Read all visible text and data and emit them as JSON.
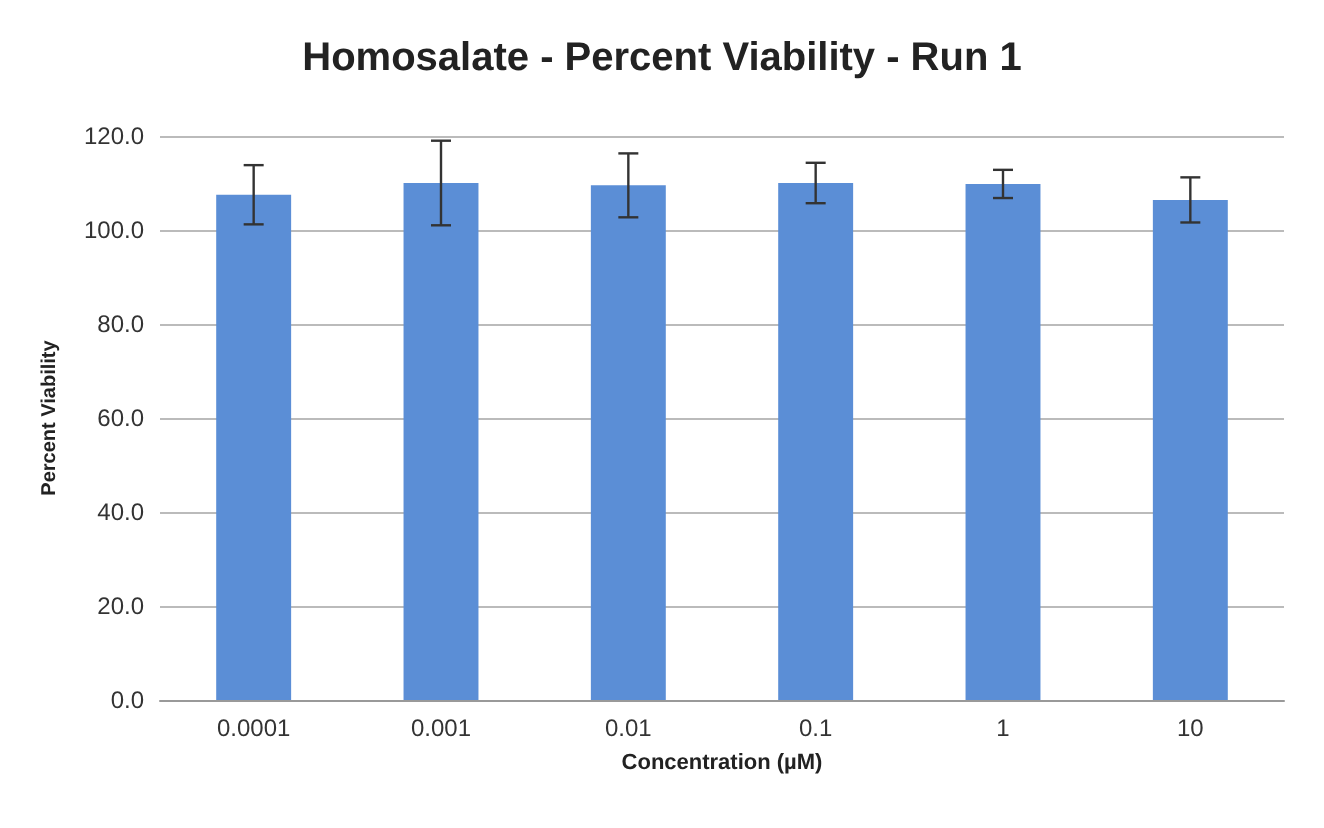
{
  "chart_data": {
    "type": "bar",
    "title": "Homosalate - Percent Viability - Run 1",
    "xlabel": "Concentration (µM)",
    "ylabel": "Percent Viability",
    "categories": [
      "0.0001",
      "0.001",
      "0.01",
      "0.1",
      "1",
      "10"
    ],
    "values": [
      107.5,
      110.0,
      109.5,
      110.0,
      109.8,
      106.4
    ],
    "errors": [
      6.3,
      9.0,
      6.8,
      4.3,
      3.0,
      4.8
    ],
    "color": "#5b8ed6",
    "ylim": [
      0,
      120
    ],
    "yticks": [
      {
        "value": 0,
        "label": "0.0"
      },
      {
        "value": 20,
        "label": "20.0"
      },
      {
        "value": 40,
        "label": "40.0"
      },
      {
        "value": 60,
        "label": "60.0"
      },
      {
        "value": 80,
        "label": "80.0"
      },
      {
        "value": 100,
        "label": "100.0"
      },
      {
        "value": 120,
        "label": "120.0"
      }
    ],
    "grid": true
  }
}
